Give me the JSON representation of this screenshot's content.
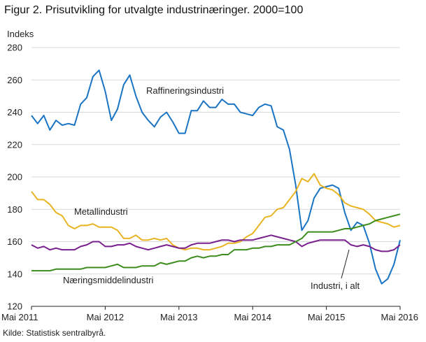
{
  "title": "Figur 2. Prisutvikling for utvalgte industrinæringer. 2000=100",
  "source": "Kilde: Statistisk sentralbyrå.",
  "chart_data": {
    "type": "line",
    "ylabel": "Indeks",
    "ylim": [
      120,
      280
    ],
    "yticks": [
      120,
      140,
      160,
      180,
      200,
      220,
      240,
      260,
      280
    ],
    "xticks": [
      {
        "label": "Mai 2011",
        "index": 0
      },
      {
        "label": "Mai 2012",
        "index": 12
      },
      {
        "label": "Mai 2013",
        "index": 24
      },
      {
        "label": "Mai 2014",
        "index": 36
      },
      {
        "label": "Mai 2015",
        "index": 48
      },
      {
        "label": "Mai 2016",
        "index": 60
      }
    ],
    "grid": "horizontal",
    "series": [
      {
        "name": "Raffineringsindustri",
        "color": "#1a74c4",
        "values": [
          238,
          233,
          238,
          229,
          235,
          232,
          233,
          232,
          245,
          249,
          262,
          266,
          253,
          235,
          242,
          257,
          263,
          250,
          240,
          235,
          231,
          237,
          240,
          234,
          227,
          227,
          241,
          241,
          247,
          243,
          243,
          248,
          245,
          245,
          240,
          239,
          238,
          243,
          245,
          244,
          231,
          229,
          217,
          195,
          167,
          173,
          187,
          193,
          194,
          195,
          193,
          178,
          167,
          172,
          170,
          159,
          143,
          134,
          137,
          146,
          161
        ]
      },
      {
        "name": "Metallindustri",
        "color": "#e9b422",
        "values": [
          191,
          186,
          186,
          183,
          178,
          176,
          170,
          168,
          170,
          170,
          171,
          169,
          169,
          169,
          167,
          162,
          162,
          164,
          161,
          161,
          162,
          161,
          162,
          158,
          156,
          155,
          156,
          156,
          155,
          155,
          156,
          157,
          159,
          159,
          160,
          163,
          165,
          170,
          175,
          176,
          180,
          181,
          186,
          191,
          199,
          197,
          202,
          195,
          193,
          192,
          189,
          184,
          182,
          181,
          180,
          177,
          173,
          172,
          171,
          169,
          170
        ]
      },
      {
        "name": "Industri, i alt",
        "color": "#7a1f8e",
        "values": [
          158,
          156,
          157,
          155,
          156,
          155,
          155,
          155,
          157,
          158,
          160,
          160,
          157,
          157,
          158,
          158,
          159,
          157,
          156,
          155,
          156,
          157,
          158,
          157,
          156,
          156,
          158,
          159,
          159,
          159,
          160,
          161,
          161,
          160,
          161,
          161,
          161,
          162,
          163,
          164,
          163,
          162,
          161,
          160,
          157,
          159,
          160,
          161,
          161,
          161,
          161,
          161,
          158,
          157,
          158,
          157,
          155,
          154,
          154,
          155,
          158
        ]
      },
      {
        "name": "Næringsmiddelindustri",
        "color": "#3d8c1e",
        "values": [
          142,
          142,
          142,
          142,
          143,
          143,
          143,
          143,
          143,
          144,
          144,
          144,
          144,
          145,
          146,
          144,
          144,
          144,
          145,
          145,
          145,
          147,
          146,
          147,
          148,
          148,
          150,
          151,
          150,
          151,
          151,
          152,
          152,
          155,
          155,
          155,
          156,
          156,
          157,
          157,
          158,
          158,
          158,
          160,
          162,
          166,
          166,
          166,
          166,
          166,
          167,
          168,
          168,
          169,
          170,
          171,
          173,
          174,
          175,
          176,
          177
        ]
      }
    ],
    "annotations": [
      {
        "text": "Raffineringsindustri",
        "series": 0
      },
      {
        "text": "Metallindustri",
        "series": 1
      },
      {
        "text": "Næringsmiddelindustri",
        "series": 3
      },
      {
        "text": "Industri, i alt",
        "series": 2
      }
    ]
  }
}
